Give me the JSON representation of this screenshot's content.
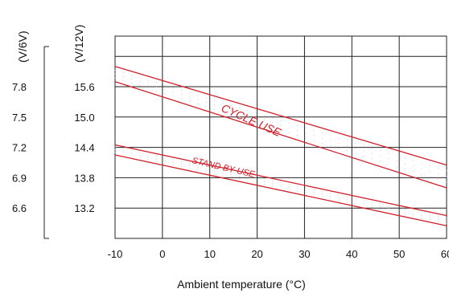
{
  "chart_data": {
    "type": "line",
    "title": "",
    "xlabel": "Ambient temperature (°C)",
    "x_ticks": [
      "-10",
      "0",
      "10",
      "20",
      "30",
      "40",
      "50",
      "60"
    ],
    "xlim": [
      -10,
      60
    ],
    "ylim": [
      12.6,
      16.6
    ],
    "y_ticks_12v": [
      "15.6",
      "15.0",
      "14.4",
      "13.8",
      "13.2"
    ],
    "y_ticks_6v": [
      "7.8",
      "7.5",
      "7.2",
      "6.9",
      "6.6"
    ],
    "y_tick_values": [
      15.6,
      15.0,
      14.4,
      13.8,
      13.2
    ],
    "y_label_12v": "(V/12V)",
    "y_label_6v": "(V/6V)",
    "grid": true,
    "series": [
      {
        "name": "CYCLE USE",
        "color": "#d0202a",
        "x": [
          -10,
          60
        ],
        "upper": [
          16.0,
          14.05
        ],
        "lower": [
          15.7,
          13.6
        ]
      },
      {
        "name": "STAND BY USE",
        "color": "#d0202a",
        "x": [
          -10,
          60
        ],
        "upper": [
          14.45,
          13.05
        ],
        "lower": [
          14.25,
          12.85
        ]
      }
    ]
  }
}
